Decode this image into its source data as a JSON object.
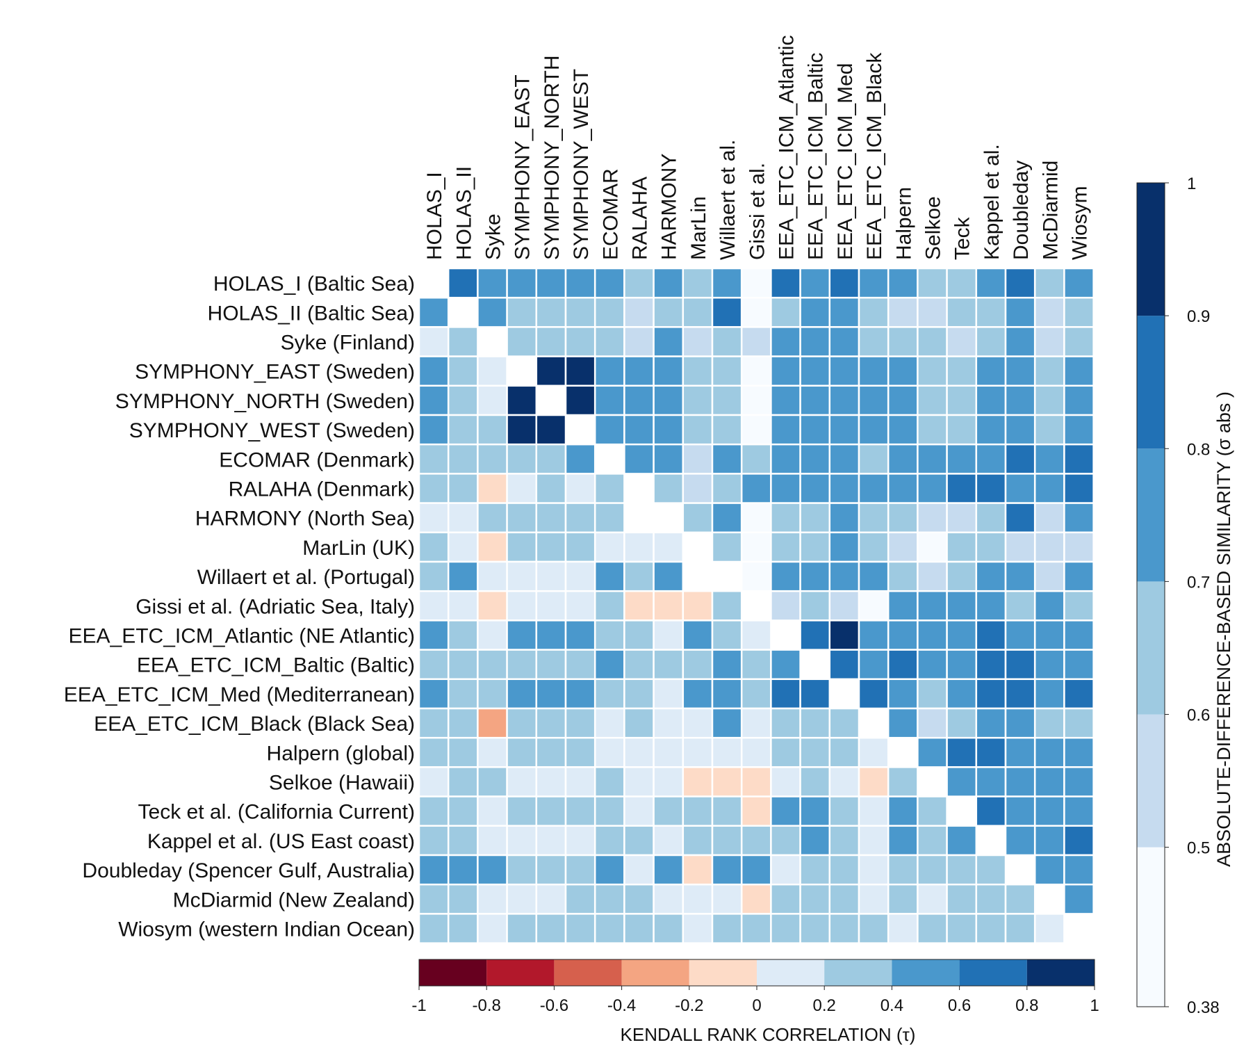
{
  "chart_data": {
    "type": "heatmap",
    "lower_triangle_metric": "KENDALL RANK CORRELATION (τ)",
    "upper_triangle_metric": "ABSOLUTE-DIFFERENCE-BASED SIMILARITY (σ abs )",
    "column_labels": [
      "HOLAS_I",
      "HOLAS_II",
      "Syke",
      "SYMPHONY_EAST",
      "SYMPHONY_NORTH",
      "SYMPHONY_WEST",
      "ECOMAR",
      "RALAHA",
      "HARMONY",
      "MarLin",
      "Willaert et al.",
      "Gissi et al.",
      "EEA_ETC_ICM_Atlantic",
      "EEA_ETC_ICM_Baltic",
      "EEA_ETC_ICM_Med",
      "EEA_ETC_ICM_Black",
      "Halpern",
      "Selkoe",
      "Teck",
      "Kappel et al.",
      "Doubleday",
      "McDiarmid",
      "Wiosym"
    ],
    "row_labels": [
      "HOLAS_I (Baltic Sea)",
      "HOLAS_II (Baltic Sea)",
      "Syke (Finland)",
      "SYMPHONY_EAST (Sweden)",
      "SYMPHONY_NORTH (Sweden)",
      "SYMPHONY_WEST (Sweden)",
      "ECOMAR (Denmark)",
      "RALAHA (Denmark)",
      "HARMONY (North Sea)",
      "MarLin (UK)",
      "Willaert et al. (Portugal)",
      "Gissi et al. (Adriatic Sea, Italy)",
      "EEA_ETC_ICM_Atlantic (NE Atlantic)",
      "EEA_ETC_ICM_Baltic (Baltic)",
      "EEA_ETC_ICM_Med (Mediterranean)",
      "EEA_ETC_ICM_Black (Black Sea)",
      "Halpern (global)",
      "Selkoe (Hawaii)",
      "Teck et al. (California Current)",
      "Kappel et al. (US East coast)",
      "Doubleday (Spencer Gulf, Australia)",
      "McDiarmid (New Zealand)",
      "Wiosym (western Indian Ocean)"
    ],
    "upper_triangle_values": [
      [
        null,
        0.85,
        0.75,
        0.75,
        0.75,
        0.75,
        0.75,
        0.65,
        0.75,
        0.65,
        0.75,
        0.45,
        0.85,
        0.75,
        0.85,
        0.75,
        0.75,
        0.65,
        0.65,
        0.75,
        0.85,
        0.65,
        0.75
      ],
      [
        null,
        null,
        0.75,
        0.65,
        0.65,
        0.65,
        0.65,
        0.55,
        0.65,
        0.65,
        0.85,
        0.45,
        0.65,
        0.75,
        0.75,
        0.65,
        0.55,
        0.55,
        0.65,
        0.65,
        0.75,
        0.55,
        0.65
      ],
      [
        null,
        null,
        null,
        0.65,
        0.65,
        0.65,
        0.65,
        0.55,
        0.75,
        0.55,
        0.65,
        0.55,
        0.75,
        0.75,
        0.75,
        0.65,
        0.65,
        0.65,
        0.55,
        0.65,
        0.75,
        0.55,
        0.65
      ],
      [
        null,
        null,
        null,
        null,
        0.95,
        0.95,
        0.75,
        0.75,
        0.75,
        0.65,
        0.65,
        0.45,
        0.75,
        0.75,
        0.75,
        0.75,
        0.75,
        0.65,
        0.65,
        0.75,
        0.75,
        0.65,
        0.75
      ],
      [
        null,
        null,
        null,
        null,
        null,
        0.95,
        0.75,
        0.75,
        0.75,
        0.65,
        0.65,
        0.45,
        0.75,
        0.75,
        0.75,
        0.75,
        0.75,
        0.65,
        0.65,
        0.75,
        0.75,
        0.65,
        0.75
      ],
      [
        null,
        null,
        null,
        null,
        null,
        null,
        0.75,
        0.75,
        0.75,
        0.65,
        0.65,
        0.45,
        0.75,
        0.75,
        0.75,
        0.75,
        0.75,
        0.65,
        0.65,
        0.75,
        0.75,
        0.65,
        0.75
      ],
      [
        null,
        null,
        null,
        null,
        null,
        null,
        null,
        0.75,
        0.75,
        0.55,
        0.75,
        0.65,
        0.75,
        0.75,
        0.75,
        0.65,
        0.75,
        0.75,
        0.75,
        0.75,
        0.85,
        0.75,
        0.85
      ],
      [
        null,
        null,
        null,
        null,
        null,
        null,
        null,
        null,
        0.65,
        0.55,
        0.65,
        0.75,
        0.75,
        0.75,
        0.75,
        0.75,
        0.75,
        0.75,
        0.85,
        0.85,
        0.75,
        0.75,
        0.85
      ],
      [
        null,
        null,
        null,
        null,
        null,
        null,
        null,
        null,
        null,
        0.65,
        0.75,
        0.45,
        0.65,
        0.65,
        0.75,
        0.65,
        0.65,
        0.55,
        0.55,
        0.65,
        0.85,
        0.55,
        0.75
      ],
      [
        null,
        null,
        null,
        null,
        null,
        null,
        null,
        null,
        null,
        null,
        0.65,
        0.45,
        0.65,
        0.65,
        0.75,
        0.65,
        0.55,
        0.45,
        0.65,
        0.65,
        0.55,
        0.55,
        0.55
      ],
      [
        null,
        null,
        null,
        null,
        null,
        null,
        null,
        null,
        null,
        null,
        null,
        0.45,
        0.75,
        0.75,
        0.75,
        0.75,
        0.65,
        0.55,
        0.65,
        0.75,
        0.75,
        0.55,
        0.75
      ],
      [
        null,
        null,
        null,
        null,
        null,
        null,
        null,
        null,
        null,
        null,
        null,
        null,
        0.55,
        0.65,
        0.55,
        0.45,
        0.75,
        0.75,
        0.75,
        0.75,
        0.65,
        0.75,
        0.65
      ],
      [
        null,
        null,
        null,
        null,
        null,
        null,
        null,
        null,
        null,
        null,
        null,
        null,
        null,
        0.85,
        0.95,
        0.75,
        0.75,
        0.75,
        0.75,
        0.85,
        0.75,
        0.75,
        0.75
      ],
      [
        null,
        null,
        null,
        null,
        null,
        null,
        null,
        null,
        null,
        null,
        null,
        null,
        null,
        null,
        0.85,
        0.75,
        0.85,
        0.75,
        0.75,
        0.85,
        0.85,
        0.75,
        0.75
      ],
      [
        null,
        null,
        null,
        null,
        null,
        null,
        null,
        null,
        null,
        null,
        null,
        null,
        null,
        null,
        null,
        0.85,
        0.75,
        0.65,
        0.75,
        0.85,
        0.85,
        0.75,
        0.85
      ],
      [
        null,
        null,
        null,
        null,
        null,
        null,
        null,
        null,
        null,
        null,
        null,
        null,
        null,
        null,
        null,
        null,
        0.75,
        0.55,
        0.65,
        0.75,
        0.75,
        0.65,
        0.65
      ],
      [
        null,
        null,
        null,
        null,
        null,
        null,
        null,
        null,
        null,
        null,
        null,
        null,
        null,
        null,
        null,
        null,
        null,
        0.75,
        0.85,
        0.85,
        0.75,
        0.75,
        0.75
      ],
      [
        null,
        null,
        null,
        null,
        null,
        null,
        null,
        null,
        null,
        null,
        null,
        null,
        null,
        null,
        null,
        null,
        null,
        null,
        0.75,
        0.75,
        0.75,
        0.75,
        0.75
      ],
      [
        null,
        null,
        null,
        null,
        null,
        null,
        null,
        null,
        null,
        null,
        null,
        null,
        null,
        null,
        null,
        null,
        null,
        null,
        null,
        0.85,
        0.75,
        0.75,
        0.75
      ],
      [
        null,
        null,
        null,
        null,
        null,
        null,
        null,
        null,
        null,
        null,
        null,
        null,
        null,
        null,
        null,
        null,
        null,
        null,
        null,
        null,
        0.75,
        0.75,
        0.85
      ],
      [
        null,
        null,
        null,
        null,
        null,
        null,
        null,
        null,
        null,
        null,
        null,
        null,
        null,
        null,
        null,
        null,
        null,
        null,
        null,
        null,
        null,
        0.75,
        0.75
      ],
      [
        null,
        null,
        null,
        null,
        null,
        null,
        null,
        null,
        null,
        null,
        null,
        null,
        null,
        null,
        null,
        null,
        null,
        null,
        null,
        null,
        null,
        null,
        0.75
      ],
      [
        null,
        null,
        null,
        null,
        null,
        null,
        null,
        null,
        null,
        null,
        null,
        null,
        null,
        null,
        null,
        null,
        null,
        null,
        null,
        null,
        null,
        null,
        null
      ]
    ],
    "lower_triangle_values": [
      [
        null
      ],
      [
        0.5,
        null
      ],
      [
        0.1,
        0.3,
        null
      ],
      [
        0.5,
        0.3,
        0.1,
        null
      ],
      [
        0.5,
        0.3,
        0.1,
        0.9,
        null
      ],
      [
        0.5,
        0.3,
        0.3,
        0.9,
        0.9,
        null
      ],
      [
        0.3,
        0.3,
        0.3,
        0.3,
        0.3,
        0.5,
        null
      ],
      [
        0.3,
        0.3,
        -0.1,
        0.1,
        0.3,
        0.1,
        0.3,
        null
      ],
      [
        0.1,
        0.1,
        0.3,
        0.3,
        0.3,
        0.3,
        0.3,
        null,
        null
      ],
      [
        0.3,
        0.1,
        -0.1,
        0.3,
        0.3,
        0.3,
        0.1,
        0.1,
        0.1,
        null
      ],
      [
        0.3,
        0.5,
        0.1,
        0.1,
        0.1,
        0.1,
        0.5,
        0.3,
        0.5,
        null,
        null
      ],
      [
        0.1,
        0.1,
        -0.1,
        0.1,
        0.1,
        0.1,
        0.3,
        -0.1,
        -0.1,
        -0.1,
        0.3,
        null
      ],
      [
        0.5,
        0.3,
        0.1,
        0.5,
        0.5,
        0.5,
        0.3,
        0.3,
        0.1,
        0.5,
        0.3,
        0.1,
        null
      ],
      [
        0.3,
        0.3,
        0.3,
        0.3,
        0.3,
        0.3,
        0.5,
        0.3,
        0.3,
        0.3,
        0.5,
        0.3,
        0.5,
        null
      ],
      [
        0.5,
        0.3,
        0.3,
        0.5,
        0.5,
        0.5,
        0.3,
        0.3,
        0.1,
        0.5,
        0.5,
        0.3,
        0.7,
        0.7,
        null
      ],
      [
        0.3,
        0.3,
        -0.3,
        0.3,
        0.3,
        0.3,
        0.1,
        0.3,
        0.1,
        0.1,
        0.5,
        0.1,
        0.3,
        0.3,
        0.3,
        null
      ],
      [
        0.3,
        0.3,
        0.1,
        0.3,
        0.3,
        0.3,
        0.1,
        0.1,
        0.1,
        0.1,
        0.1,
        0.1,
        0.3,
        0.3,
        0.3,
        0.1,
        null
      ],
      [
        0.1,
        0.3,
        0.3,
        0.1,
        0.1,
        0.1,
        0.3,
        0.1,
        0.1,
        -0.1,
        -0.1,
        -0.1,
        0.1,
        0.3,
        0.1,
        -0.1,
        0.3,
        null
      ],
      [
        0.3,
        0.3,
        0.1,
        0.3,
        0.3,
        0.3,
        0.3,
        0.1,
        0.3,
        0.3,
        0.3,
        -0.1,
        0.5,
        0.5,
        0.3,
        0.1,
        0.5,
        0.3,
        null
      ],
      [
        0.3,
        0.3,
        0.1,
        0.1,
        0.1,
        0.1,
        0.3,
        0.3,
        0.1,
        0.3,
        0.3,
        0.3,
        0.3,
        0.5,
        0.3,
        0.1,
        0.5,
        0.3,
        0.5,
        null
      ],
      [
        0.5,
        0.5,
        0.5,
        0.3,
        0.3,
        0.3,
        0.5,
        0.1,
        0.5,
        -0.1,
        0.5,
        0.5,
        0.1,
        0.3,
        0.3,
        0.1,
        0.3,
        0.3,
        0.3,
        0.3,
        null
      ],
      [
        0.3,
        0.3,
        0.1,
        0.1,
        0.1,
        0.3,
        0.3,
        0.3,
        0.1,
        0.1,
        0.1,
        -0.1,
        0.3,
        0.3,
        0.3,
        0.1,
        0.3,
        0.1,
        0.3,
        0.3,
        0.3,
        null
      ],
      [
        0.3,
        0.3,
        0.1,
        0.3,
        0.3,
        0.3,
        0.3,
        0.3,
        0.3,
        0.1,
        0.3,
        0.3,
        0.3,
        0.3,
        0.3,
        0.3,
        0.1,
        0.3,
        0.3,
        0.3,
        0.3,
        0.1,
        null
      ]
    ],
    "colorbar_bottom": {
      "label": "KENDALL RANK CORRELATION (τ)",
      "range": [
        -1,
        1
      ],
      "ticks": [
        "-1",
        "-0.8",
        "-0.6",
        "-0.4",
        "-0.2",
        "0",
        "0.2",
        "0.4",
        "0.6",
        "0.8",
        "1"
      ],
      "colors": [
        "#67001f",
        "#b2182b",
        "#d6604d",
        "#f4a582",
        "#fddbc7",
        "#deebf7",
        "#9ecae1",
        "#4a98cc",
        "#2171b5",
        "#08306b"
      ]
    },
    "colorbar_right": {
      "label": "ABSOLUTE-DIFFERENCE-BASED SIMILARITY (σ abs )",
      "range": [
        0.38,
        1
      ],
      "ticks": [
        "0.38",
        "0.5",
        "0.6",
        "0.7",
        "0.8",
        "0.9",
        "1"
      ],
      "bounds": [
        0.38,
        0.5,
        0.6,
        0.7,
        0.8,
        0.9,
        1
      ],
      "colors": [
        "#f7fbff",
        "#c6dbef",
        "#9ecae1",
        "#4a98cc",
        "#2171b5",
        "#08306b"
      ]
    },
    "grid": true
  }
}
